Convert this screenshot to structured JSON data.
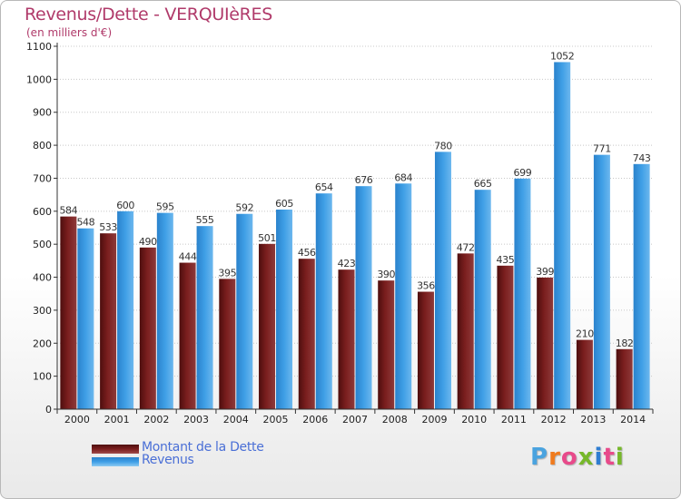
{
  "title": "Revenus/Dette - VERQUIèRES",
  "subtitle": "(en milliers d'€)",
  "logo": {
    "text": "Proxiti",
    "letter_colors": [
      "#4aa3df",
      "#f07b1d",
      "#e84a8a",
      "#76b82a",
      "#2f7dd1",
      "#e84a8a",
      "#76b82a"
    ]
  },
  "colors": {
    "dette": "#7a1e1e",
    "revenus": "#3f9fe6",
    "axis": "#333333",
    "grid": "#c8c8c8",
    "title": "#b03a6a",
    "legend_text": "#4a6fd6"
  },
  "chart_data": {
    "type": "bar",
    "title": "Revenus/Dette - VERQUIèRES",
    "subtitle": "(en milliers d'€)",
    "categories": [
      "2000",
      "2001",
      "2002",
      "2003",
      "2004",
      "2005",
      "2006",
      "2007",
      "2008",
      "2009",
      "2010",
      "2011",
      "2012",
      "2013",
      "2014"
    ],
    "series": [
      {
        "name": "Montant de la Dette",
        "values": [
          584,
          533,
          490,
          444,
          395,
          501,
          456,
          423,
          390,
          356,
          472,
          435,
          399,
          210,
          182
        ]
      },
      {
        "name": "Revenus",
        "values": [
          548,
          600,
          595,
          555,
          592,
          605,
          654,
          676,
          684,
          780,
          665,
          699,
          1052,
          771,
          743
        ]
      }
    ],
    "ylim": [
      0,
      1100
    ],
    "yticks": [
      0,
      100,
      200,
      300,
      400,
      500,
      600,
      700,
      800,
      900,
      1000,
      1100
    ],
    "grid": true,
    "legend_position": "bottom-left"
  }
}
